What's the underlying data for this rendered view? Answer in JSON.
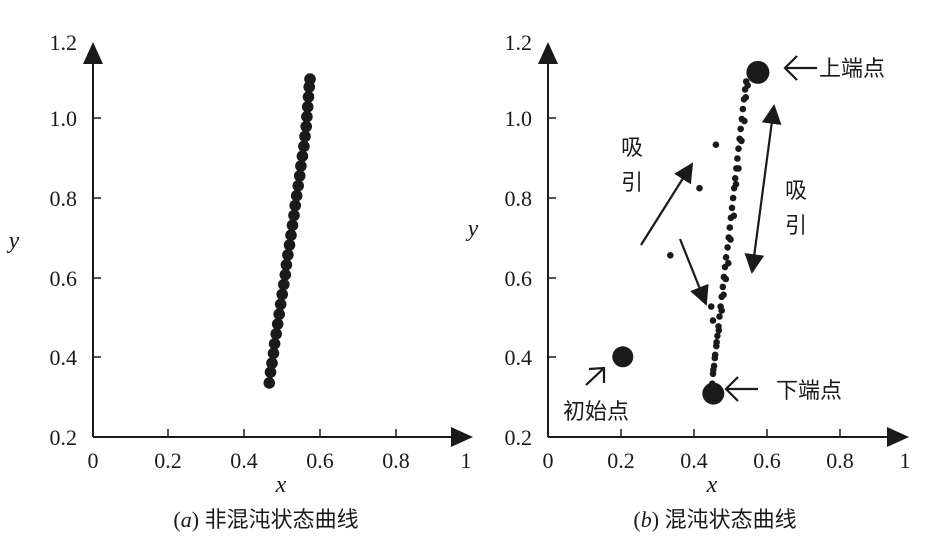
{
  "chart_data": [
    {
      "type": "scatter",
      "caption_label": "a",
      "caption_title": "非混沌状态曲线",
      "xlabel": "x",
      "ylabel": "y",
      "xlim": [
        0,
        1
      ],
      "ylim": [
        0.2,
        1.2
      ],
      "xticks": [
        "0",
        "0.2",
        "0.4",
        "0.6",
        "0.8",
        "1"
      ],
      "yticks": [
        "0.2",
        "0.4",
        "0.6",
        "0.8",
        "1.0",
        "1.2"
      ],
      "series": [
        {
          "points": [
            [
              0.464,
              0.337
            ],
            [
              0.467,
              0.364
            ],
            [
              0.471,
              0.387
            ],
            [
              0.475,
              0.412
            ],
            [
              0.478,
              0.436
            ],
            [
              0.482,
              0.461
            ],
            [
              0.486,
              0.486
            ],
            [
              0.49,
              0.511
            ],
            [
              0.494,
              0.536
            ],
            [
              0.498,
              0.561
            ],
            [
              0.502,
              0.586
            ],
            [
              0.506,
              0.611
            ],
            [
              0.509,
              0.636
            ],
            [
              0.513,
              0.661
            ],
            [
              0.517,
              0.686
            ],
            [
              0.521,
              0.711
            ],
            [
              0.525,
              0.736
            ],
            [
              0.529,
              0.761
            ],
            [
              0.532,
              0.786
            ],
            [
              0.536,
              0.811
            ],
            [
              0.54,
              0.836
            ],
            [
              0.544,
              0.861
            ],
            [
              0.547,
              0.886
            ],
            [
              0.551,
              0.911
            ],
            [
              0.555,
              0.936
            ],
            [
              0.558,
              0.961
            ],
            [
              0.561,
              0.986
            ],
            [
              0.563,
              1.011
            ],
            [
              0.565,
              1.036
            ],
            [
              0.567,
              1.061
            ],
            [
              0.569,
              1.086
            ],
            [
              0.571,
              1.106
            ]
          ]
        }
      ]
    },
    {
      "type": "scatter",
      "caption_label": "b",
      "caption_title": "混沌状态曲线",
      "xlabel": "x",
      "ylabel": "y",
      "xlim": [
        0,
        1
      ],
      "ylim": [
        0.2,
        1.2
      ],
      "xticks": [
        "0",
        "0.2",
        "0.4",
        "0.6",
        "0.8",
        "1"
      ],
      "yticks": [
        "0.2",
        "0.4",
        "0.6",
        "0.8",
        "1.0",
        "1.2"
      ],
      "series": [
        {
          "points": [
            [
              0.45,
              0.335
            ],
            [
              0.452,
              0.36
            ],
            [
              0.455,
              0.38
            ],
            [
              0.458,
              0.408
            ],
            [
              0.461,
              0.43
            ],
            [
              0.464,
              0.456
            ],
            [
              0.467,
              0.48
            ],
            [
              0.47,
              0.505
            ],
            [
              0.473,
              0.53
            ],
            [
              0.476,
              0.555
            ],
            [
              0.479,
              0.58
            ],
            [
              0.482,
              0.605
            ],
            [
              0.485,
              0.63
            ],
            [
              0.488,
              0.655
            ],
            [
              0.492,
              0.68
            ],
            [
              0.495,
              0.705
            ],
            [
              0.498,
              0.73
            ],
            [
              0.501,
              0.755
            ],
            [
              0.504,
              0.78
            ],
            [
              0.507,
              0.805
            ],
            [
              0.51,
              0.83
            ],
            [
              0.513,
              0.855
            ],
            [
              0.516,
              0.88
            ],
            [
              0.519,
              0.905
            ],
            [
              0.522,
              0.93
            ],
            [
              0.525,
              0.955
            ],
            [
              0.528,
              0.98
            ],
            [
              0.531,
              1.005
            ],
            [
              0.534,
              1.03
            ],
            [
              0.537,
              1.055
            ],
            [
              0.54,
              1.08
            ],
            [
              0.543,
              1.1
            ],
            [
              0.547,
              1.09
            ],
            [
              0.542,
              1.06
            ],
            [
              0.538,
              1.0
            ],
            [
              0.53,
              0.95
            ],
            [
              0.522,
              0.88
            ],
            [
              0.515,
              0.84
            ],
            [
              0.509,
              0.76
            ],
            [
              0.5,
              0.7
            ],
            [
              0.494,
              0.64
            ],
            [
              0.487,
              0.6
            ],
            [
              0.481,
              0.56
            ],
            [
              0.476,
              0.52
            ],
            [
              0.468,
              0.47
            ],
            [
              0.462,
              0.44
            ],
            [
              0.457,
              0.4
            ],
            [
              0.453,
              0.37
            ],
            [
              0.335,
              0.66
            ],
            [
              0.415,
              0.83
            ],
            [
              0.46,
              0.94
            ],
            [
              0.447,
              0.53
            ],
            [
              0.452,
              0.495
            ]
          ]
        },
        {
          "name": "初始点",
          "points": [
            [
              0.205,
              0.403
            ]
          ]
        },
        {
          "name": "上端点",
          "points": [
            [
              0.575,
              1.123
            ]
          ]
        },
        {
          "name": "下端点",
          "points": [
            [
              0.453,
              0.31
            ]
          ]
        }
      ],
      "annotations": [
        {
          "text": "上端点"
        },
        {
          "text": "下端点"
        },
        {
          "text": "初始点"
        },
        {
          "text": "吸引"
        },
        {
          "text": "吸引"
        }
      ]
    }
  ]
}
